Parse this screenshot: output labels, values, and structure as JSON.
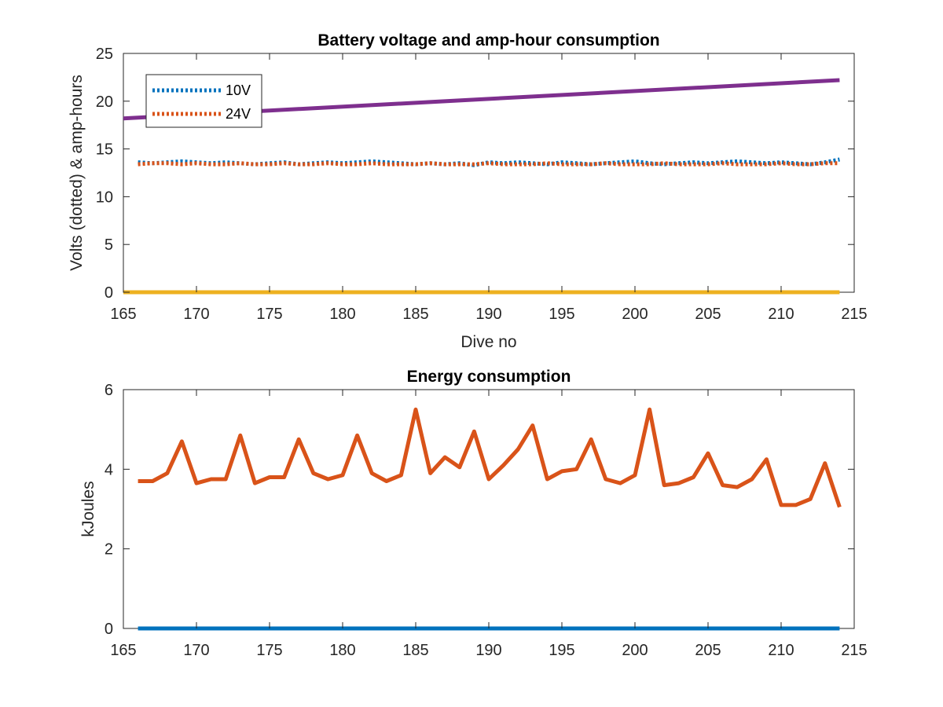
{
  "chart_data": [
    {
      "type": "line",
      "title": "Battery voltage and amp-hour consumption",
      "xlabel": "Dive no",
      "ylabel": "Volts (dotted) & amp-hours",
      "xlim": [
        165,
        215
      ],
      "ylim": [
        0,
        25
      ],
      "xticks": [
        "165",
        "170",
        "175",
        "180",
        "185",
        "190",
        "195",
        "200",
        "205",
        "210",
        "215"
      ],
      "yticks": [
        "0",
        "5",
        "10",
        "15",
        "20",
        "25"
      ],
      "grid": false,
      "legend_position": "top-left",
      "x": [
        166,
        167,
        168,
        169,
        170,
        171,
        172,
        173,
        174,
        175,
        176,
        177,
        178,
        179,
        180,
        181,
        182,
        183,
        184,
        185,
        186,
        187,
        188,
        189,
        190,
        191,
        192,
        193,
        194,
        195,
        196,
        197,
        198,
        199,
        200,
        201,
        202,
        203,
        204,
        205,
        206,
        207,
        208,
        209,
        210,
        211,
        212,
        213,
        214
      ],
      "series": [
        {
          "name": "10V",
          "style": "dotted",
          "color": "#0072BD",
          "values": [
            13.6,
            13.5,
            13.6,
            13.7,
            13.6,
            13.5,
            13.6,
            13.5,
            13.4,
            13.5,
            13.6,
            13.4,
            13.5,
            13.6,
            13.5,
            13.6,
            13.7,
            13.6,
            13.5,
            13.4,
            13.5,
            13.4,
            13.5,
            13.3,
            13.6,
            13.5,
            13.6,
            13.5,
            13.4,
            13.6,
            13.5,
            13.4,
            13.5,
            13.6,
            13.7,
            13.5,
            13.4,
            13.5,
            13.6,
            13.5,
            13.6,
            13.7,
            13.6,
            13.5,
            13.6,
            13.5,
            13.4,
            13.6,
            13.9
          ]
        },
        {
          "name": "24V",
          "style": "dotted",
          "color": "#D95319",
          "values": [
            13.4,
            13.5,
            13.5,
            13.4,
            13.5,
            13.4,
            13.4,
            13.5,
            13.4,
            13.4,
            13.5,
            13.4,
            13.4,
            13.5,
            13.4,
            13.4,
            13.5,
            13.4,
            13.4,
            13.4,
            13.5,
            13.4,
            13.4,
            13.4,
            13.5,
            13.4,
            13.4,
            13.4,
            13.5,
            13.4,
            13.4,
            13.4,
            13.5,
            13.4,
            13.4,
            13.4,
            13.5,
            13.4,
            13.4,
            13.4,
            13.5,
            13.4,
            13.4,
            13.4,
            13.5,
            13.4,
            13.4,
            13.5,
            13.5
          ]
        },
        {
          "style": "solid",
          "color": "#7E2F8E",
          "x": [
            165,
            214
          ],
          "values": [
            18.2,
            22.2
          ]
        },
        {
          "style": "solid",
          "color": "#EDB120",
          "x": [
            165,
            214
          ],
          "values": [
            0,
            0
          ]
        }
      ]
    },
    {
      "type": "line",
      "title": "Energy consumption",
      "xlabel": "",
      "ylabel": "kJoules",
      "xlim": [
        165,
        215
      ],
      "ylim": [
        0,
        6
      ],
      "xticks": [
        "165",
        "170",
        "175",
        "180",
        "185",
        "190",
        "195",
        "200",
        "205",
        "210",
        "215"
      ],
      "yticks": [
        "0",
        "2",
        "4",
        "6"
      ],
      "grid": false,
      "x": [
        166,
        167,
        168,
        169,
        170,
        171,
        172,
        173,
        174,
        175,
        176,
        177,
        178,
        179,
        180,
        181,
        182,
        183,
        184,
        185,
        186,
        187,
        188,
        189,
        190,
        191,
        192,
        193,
        194,
        195,
        196,
        197,
        198,
        199,
        200,
        201,
        202,
        203,
        204,
        205,
        206,
        207,
        208,
        209,
        210,
        211,
        212,
        213,
        214
      ],
      "series": [
        {
          "style": "solid",
          "color": "#D95319",
          "values": [
            3.7,
            3.7,
            3.9,
            4.7,
            3.65,
            3.75,
            3.75,
            4.85,
            3.65,
            3.8,
            3.8,
            4.75,
            3.9,
            3.75,
            3.85,
            4.85,
            3.9,
            3.7,
            3.85,
            5.5,
            3.9,
            4.3,
            4.05,
            4.95,
            3.75,
            4.1,
            4.5,
            5.1,
            3.75,
            3.95,
            4.0,
            4.75,
            3.75,
            3.65,
            3.85,
            5.5,
            3.6,
            3.65,
            3.8,
            4.4,
            3.6,
            3.55,
            3.75,
            4.25,
            3.1,
            3.1,
            3.25,
            4.15,
            3.05
          ]
        },
        {
          "style": "solid",
          "color": "#0072BD",
          "x": [
            166,
            214
          ],
          "values": [
            0,
            0
          ]
        }
      ]
    }
  ]
}
